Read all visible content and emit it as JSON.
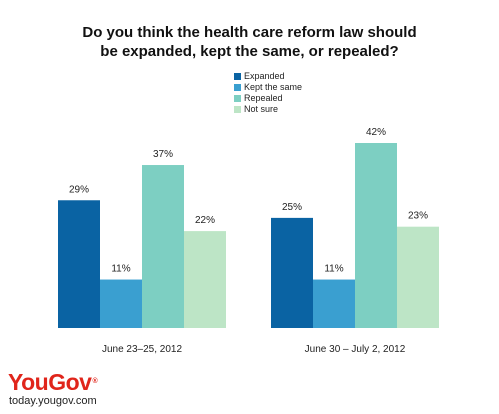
{
  "chart_data": {
    "type": "bar",
    "title_lines": [
      "Do you think the health care reform law should",
      "be expanded, kept the same, or repealed?"
    ],
    "categories": [
      "June 23–25, 2012",
      "June 30 – July 2, 2012"
    ],
    "series": [
      {
        "name": "Expanded",
        "color": "#0a63a3",
        "values": [
          29,
          25
        ],
        "labels": [
          "29%",
          "25%"
        ]
      },
      {
        "name": "Kept the same",
        "color": "#3a9fd0",
        "values": [
          11,
          11
        ],
        "labels": [
          "11%",
          "11%"
        ]
      },
      {
        "name": "Repealed",
        "color": "#7dcfc2",
        "values": [
          37,
          42
        ],
        "labels": [
          "37%",
          "42%"
        ]
      },
      {
        "name": "Not sure",
        "color": "#bde5c6",
        "values": [
          22,
          23
        ],
        "labels": [
          "22%",
          "23%"
        ]
      }
    ],
    "ylim": [
      0,
      42
    ],
    "grid": false,
    "legend_position": "top-center"
  },
  "logo": {
    "name": "YouGov",
    "reg": "®",
    "url": "today.yougov.com"
  }
}
